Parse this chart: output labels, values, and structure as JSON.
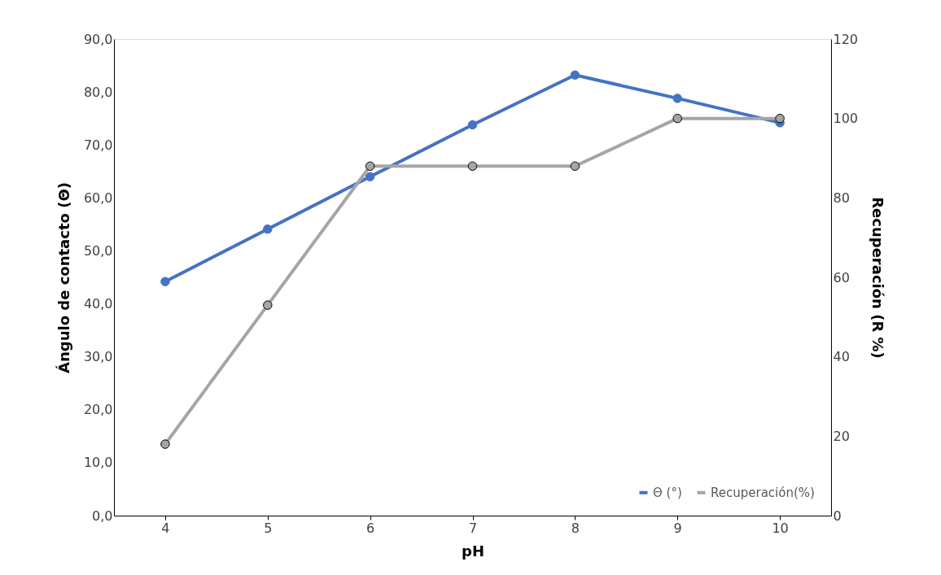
{
  "chart_data": {
    "type": "line",
    "xlabel": "pH",
    "ylabel": "Ángulo de contacto (Θ)",
    "y2label": "Recuperación (R %)",
    "categories": [
      "4",
      "5",
      "6",
      "7",
      "8",
      "9",
      "10"
    ],
    "series": [
      {
        "name": "Θ (°)",
        "color": "#4472c4",
        "values": [
          44.2,
          54.1,
          64.0,
          73.8,
          83.2,
          78.8,
          74.2
        ]
      },
      {
        "name": "Recuperación(%)",
        "color": "#a5a5a5",
        "axis": "y2",
        "values": [
          18,
          53,
          88,
          88,
          88,
          100,
          100
        ]
      }
    ],
    "ylim": [
      0,
      90
    ],
    "yticks": [
      {
        "value": 0,
        "label": "0,0"
      },
      {
        "value": 10,
        "label": "10,0"
      },
      {
        "value": 20,
        "label": "20,0"
      },
      {
        "value": 30,
        "label": "30,0"
      },
      {
        "value": 40,
        "label": "40,0"
      },
      {
        "value": 50,
        "label": "50,0"
      },
      {
        "value": 60,
        "label": "60,0"
      },
      {
        "value": 70,
        "label": "70,0"
      },
      {
        "value": 80,
        "label": "80,0"
      },
      {
        "value": 90,
        "label": "90,0"
      }
    ],
    "y2lim": [
      0,
      120
    ],
    "y2ticks": [
      0,
      20,
      40,
      60,
      80,
      100,
      120
    ],
    "marker": "circle",
    "line_style": "solid",
    "grid": false,
    "legend": "bottom right"
  }
}
